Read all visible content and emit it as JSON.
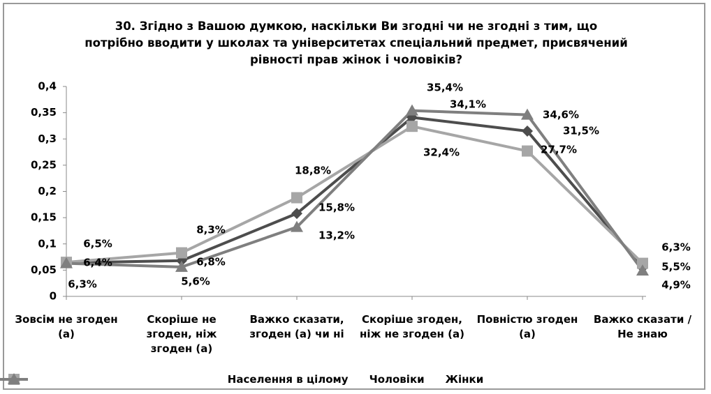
{
  "chart_data": {
    "type": "line",
    "title": "30. Згідно з Вашою думкою, наскільки Ви згодні чи не згодні з тим, що потрібно вводити у школах та університетах спеціальний предмет, присвячений рівності прав жінок і чоловіків?",
    "categories": [
      "Зовсім не згоден (а)",
      "Скоріше не згоден, ніж згоден (а)",
      "Важко сказати, згоден (а) чи ні",
      "Скоріше згоден, ніж не згоден (а)",
      "Повністю згоден (а)",
      "Важко сказати / Не знаю"
    ],
    "ylim": [
      0,
      0.4
    ],
    "yticks": [
      0,
      {
        "value": 0.05,
        "label": "0,05"
      },
      {
        "value": 0.1,
        "label": "0,1"
      },
      {
        "value": 0.15,
        "label": "0,15"
      },
      {
        "value": 0.2,
        "label": "0,2"
      },
      {
        "value": 0.25,
        "label": "0,25"
      },
      {
        "value": 0.3,
        "label": "0,3"
      },
      {
        "value": 0.35,
        "label": "0,35"
      },
      {
        "value": 0.4,
        "label": "0,4"
      }
    ],
    "legend": "bottom",
    "series": [
      {
        "name": "Населення в цілому",
        "color": "#4d4d4d",
        "marker": "diamond",
        "values": [
          0.064,
          0.068,
          0.158,
          0.341,
          0.315,
          0.055
        ],
        "value_labels": [
          "6,4%",
          "6,8%",
          "15,8%",
          "34,1%",
          "31,5%",
          "5,5%"
        ]
      },
      {
        "name": "Чоловіки",
        "color": "#a6a6a6",
        "marker": "square",
        "values": [
          0.065,
          0.083,
          0.188,
          0.324,
          0.277,
          0.063
        ],
        "value_labels": [
          "6,5%",
          "8,3%",
          "18,8%",
          "32,4%",
          "27,7%",
          "6,3%"
        ]
      },
      {
        "name": "Жінки",
        "color": "#7f7f7f",
        "marker": "triangle",
        "values": [
          0.063,
          0.056,
          0.132,
          0.354,
          0.346,
          0.049
        ],
        "value_labels": [
          "6,3%",
          "5,6%",
          "13,2%",
          "35,4%",
          "34,6%",
          "4,9%"
        ]
      }
    ]
  }
}
